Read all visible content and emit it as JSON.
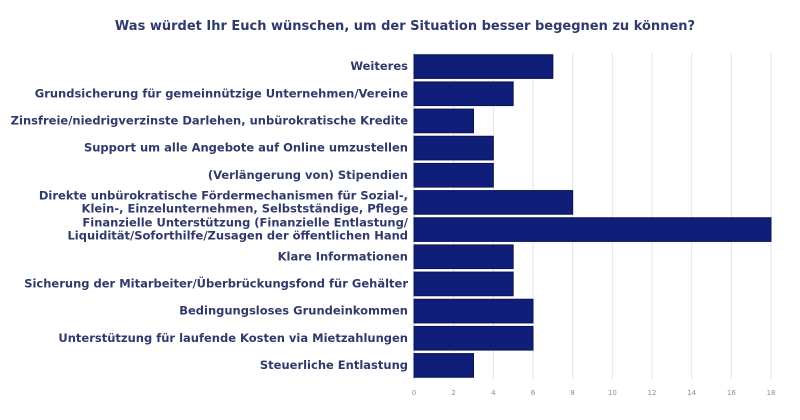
{
  "chart_data": {
    "type": "bar",
    "orientation": "horizontal",
    "title": "Was würdet Ihr Euch wünschen, um der Situation besser begegnen zu können?",
    "categories": [
      [
        "Weiteres"
      ],
      [
        "Grundsicherung für gemeinnützige Unternehmen/Vereine"
      ],
      [
        "Zinsfreie/niedrigverzinste Darlehen, unbürokratische Kredite"
      ],
      [
        "Support um alle Angebote auf Online umzustellen"
      ],
      [
        "(Verlängerung von) Stipendien"
      ],
      [
        "Direkte unbürokratische Fördermechanismen für Sozial-,",
        "Klein-, Einzelunternehmen, Selbstständige, Pflege"
      ],
      [
        "Finanzielle Unterstützung (Finanzielle Entlastung/",
        "Liquidität/Soforthilfe/Zusagen der öffentlichen Hand"
      ],
      [
        "Klare Informationen"
      ],
      [
        "Sicherung der Mitarbeiter/Überbrückungsfond für Gehälter"
      ],
      [
        "Bedingungsloses Grundeinkommen"
      ],
      [
        "Unterstützung für laufende Kosten via Mietzahlungen"
      ],
      [
        "Steuerliche Entlastung"
      ]
    ],
    "values": [
      7,
      5,
      3,
      4,
      4,
      8,
      18,
      5,
      5,
      6,
      6,
      3
    ],
    "xlim": [
      0,
      18
    ],
    "xticks": [
      0,
      2,
      4,
      6,
      8,
      10,
      12,
      14,
      16,
      18
    ],
    "grid": true,
    "colors": {
      "bar": "#0f1e78",
      "bar_edge": "#0a1450",
      "grid": "#e3e3e8",
      "label": "#303a6b",
      "tick": "#8a8f99"
    }
  }
}
